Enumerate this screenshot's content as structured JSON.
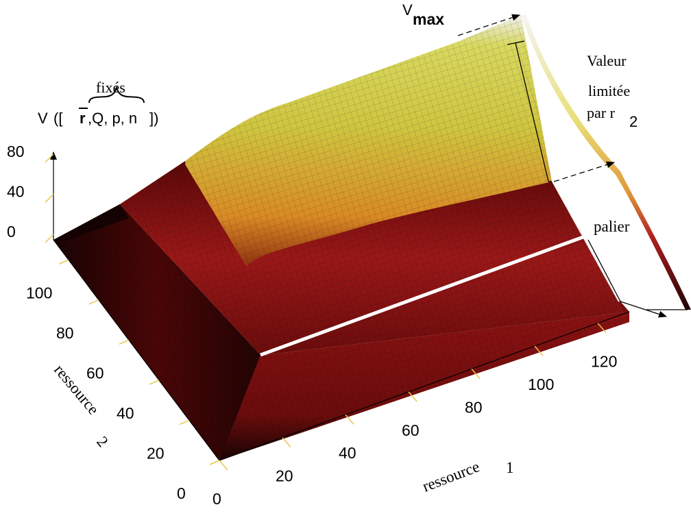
{
  "chart_data": {
    "type": "surface",
    "title": {
      "prefix": "V",
      "arg_open": "([",
      "rbar": "r",
      "arg_rest": ",Q, p, n",
      "arg_close": "])",
      "brace_label": "fixés"
    },
    "xlabel": {
      "text": "ressource",
      "index": "1"
    },
    "ylabel": {
      "text": "ressource",
      "index": "2"
    },
    "xticks": [
      "0",
      "20",
      "40",
      "60",
      "80",
      "100",
      "120"
    ],
    "yticks": [
      "0",
      "20",
      "40",
      "60",
      "80",
      "100"
    ],
    "zticks": [
      "0",
      "40",
      "80"
    ],
    "xlim": [
      0,
      130
    ],
    "ylim": [
      0,
      110
    ],
    "zlim": [
      0,
      100
    ],
    "surface": {
      "low_plateau_value": 15,
      "threshold_r1": 40,
      "threshold_r2": 60,
      "vmax": 100,
      "limited_value": 65
    },
    "annotations": {
      "vmax_prefix": "V",
      "vmax_sub": "max",
      "limited": [
        "Valeur",
        "limitée",
        "par r"
      ],
      "limited_sub": "2",
      "palier": "palier"
    },
    "colors": {
      "dark": "#1a0303",
      "red": "#8f1010",
      "orange": "#d98a25",
      "yellow": "#d8d840",
      "white": "#f2f2f2",
      "tick": "#e6c84a"
    }
  }
}
